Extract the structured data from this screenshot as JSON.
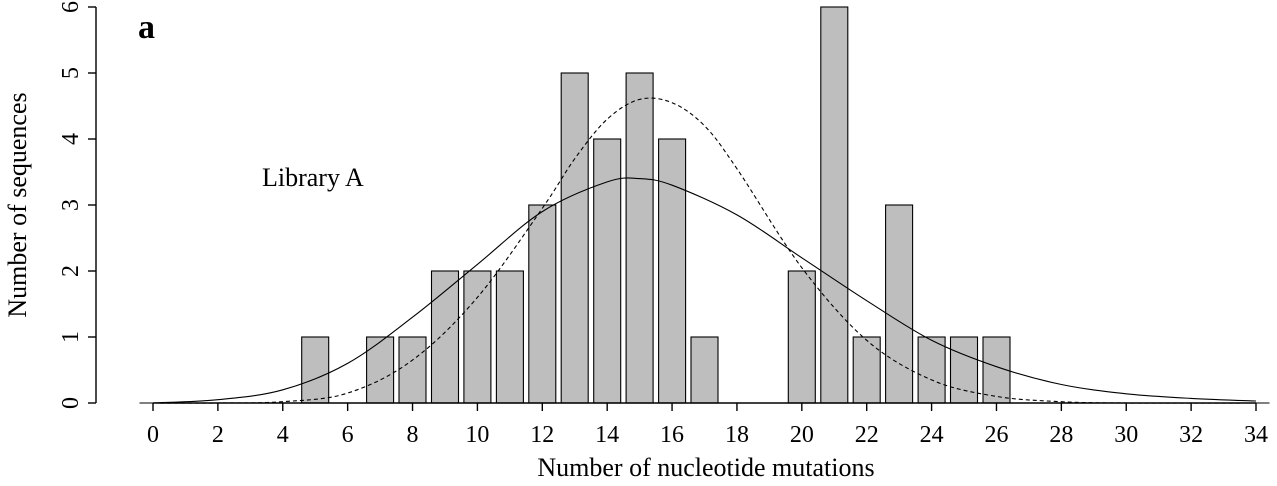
{
  "panel_label": "a",
  "annotation": "Library A",
  "chart_data": {
    "type": "bar",
    "xlabel": "Number of nucleotide mutations",
    "ylabel": "Number of sequences",
    "xlim": [
      0,
      34
    ],
    "ylim": [
      0,
      6
    ],
    "x_ticks": [
      "0",
      "2",
      "4",
      "6",
      "8",
      "10",
      "12",
      "14",
      "16",
      "18",
      "20",
      "22",
      "24",
      "26",
      "28",
      "30",
      "32",
      "34"
    ],
    "y_ticks": [
      "0",
      "1",
      "2",
      "3",
      "4",
      "5",
      "6"
    ],
    "categories": [
      0,
      1,
      2,
      3,
      4,
      5,
      6,
      7,
      8,
      9,
      10,
      11,
      12,
      13,
      14,
      15,
      16,
      17,
      18,
      19,
      20,
      21,
      22,
      23,
      24,
      25,
      26,
      27,
      28,
      29,
      30,
      31,
      32,
      33,
      34
    ],
    "values": [
      0,
      0,
      0,
      0,
      0,
      1,
      0,
      1,
      1,
      2,
      2,
      2,
      3,
      5,
      4,
      5,
      4,
      1,
      0,
      0,
      2,
      6,
      1,
      3,
      1,
      1,
      1,
      0,
      0,
      0,
      0,
      0,
      0,
      0,
      0
    ],
    "series": [
      {
        "style": "solid",
        "x": [
          0,
          2,
          4,
          6,
          8,
          10,
          12,
          14,
          15,
          16,
          18,
          20,
          22,
          24,
          26,
          28,
          30,
          32,
          34
        ],
        "values": [
          0.0,
          0.05,
          0.2,
          0.6,
          1.3,
          2.1,
          2.9,
          3.35,
          3.4,
          3.3,
          2.85,
          2.2,
          1.55,
          0.95,
          0.55,
          0.28,
          0.14,
          0.07,
          0.03
        ]
      },
      {
        "style": "dashed",
        "x": [
          0,
          2,
          4,
          6,
          8,
          10,
          12,
          13,
          14,
          15,
          16,
          17,
          18,
          20,
          22,
          24,
          26,
          28,
          30,
          34
        ],
        "values": [
          0.0,
          0.0,
          0.02,
          0.15,
          0.65,
          1.6,
          2.95,
          3.7,
          4.3,
          4.6,
          4.55,
          4.2,
          3.55,
          2.05,
          0.95,
          0.35,
          0.1,
          0.02,
          0.0,
          0.0
        ]
      }
    ],
    "grid": false,
    "legend": "none"
  }
}
